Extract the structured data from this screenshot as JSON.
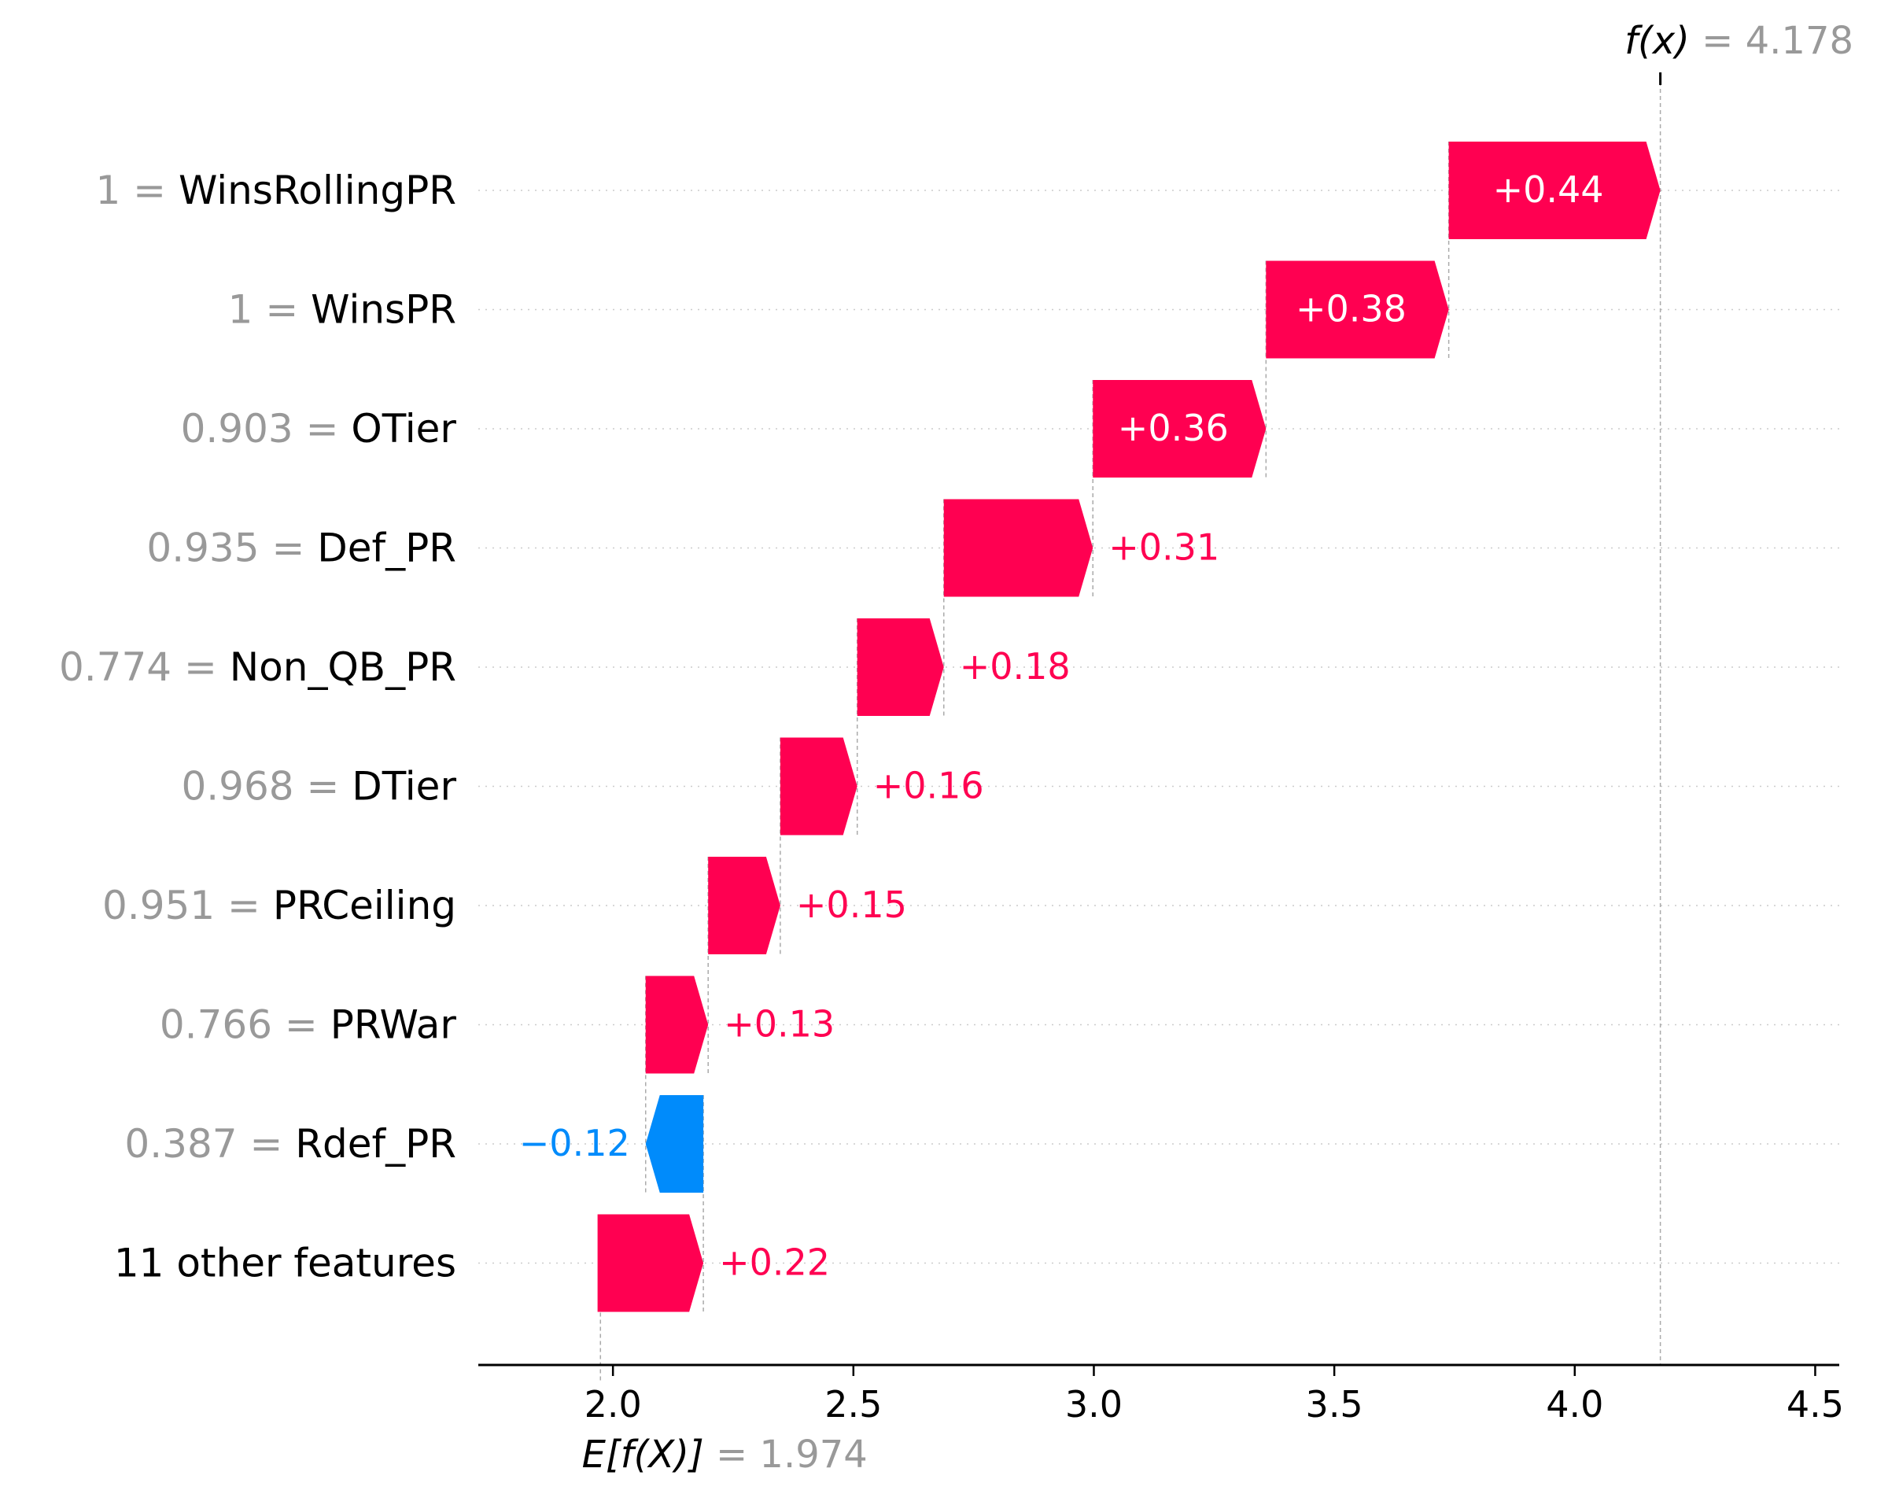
{
  "chart_data": {
    "type": "waterfall",
    "xlim": [
      1.72,
      4.55
    ],
    "x_ticks": [
      2.0,
      2.5,
      3.0,
      3.5,
      4.0,
      4.5
    ],
    "x_tick_labels": [
      "2.0",
      "2.5",
      "3.0",
      "3.5",
      "4.0",
      "4.5"
    ],
    "base_value": 1.974,
    "output_value": 4.178,
    "base_label_prefix": "E[f(X)]",
    "base_label_value": "= 1.974",
    "output_label_prefix": "f(x)",
    "output_label_value": "= 4.178",
    "grid": "dotted-horizontal",
    "colors": {
      "positive": "#ff0051",
      "negative": "#008bfb",
      "feature_value": "#999999",
      "feature_name": "#000000",
      "connector": "#bbbbbb"
    },
    "features": [
      {
        "value": "1",
        "name": "WinsRollingPR",
        "contribution": 0.44,
        "label": "+0.44"
      },
      {
        "value": "1",
        "name": "WinsPR",
        "contribution": 0.38,
        "label": "+0.38"
      },
      {
        "value": "0.903",
        "name": "OTier",
        "contribution": 0.36,
        "label": "+0.36"
      },
      {
        "value": "0.935",
        "name": "Def_PR",
        "contribution": 0.31,
        "label": "+0.31"
      },
      {
        "value": "0.774",
        "name": "Non_QB_PR",
        "contribution": 0.18,
        "label": "+0.18"
      },
      {
        "value": "0.968",
        "name": "DTier",
        "contribution": 0.16,
        "label": "+0.16"
      },
      {
        "value": "0.951",
        "name": "PRCeiling",
        "contribution": 0.15,
        "label": "+0.15"
      },
      {
        "value": "0.766",
        "name": "PRWar",
        "contribution": 0.13,
        "label": "+0.13"
      },
      {
        "value": "0.387",
        "name": "Rdef_PR",
        "contribution": -0.12,
        "label": "−0.12"
      },
      {
        "value": "",
        "name": "11 other features",
        "contribution": 0.22,
        "label": "+0.22"
      }
    ]
  }
}
